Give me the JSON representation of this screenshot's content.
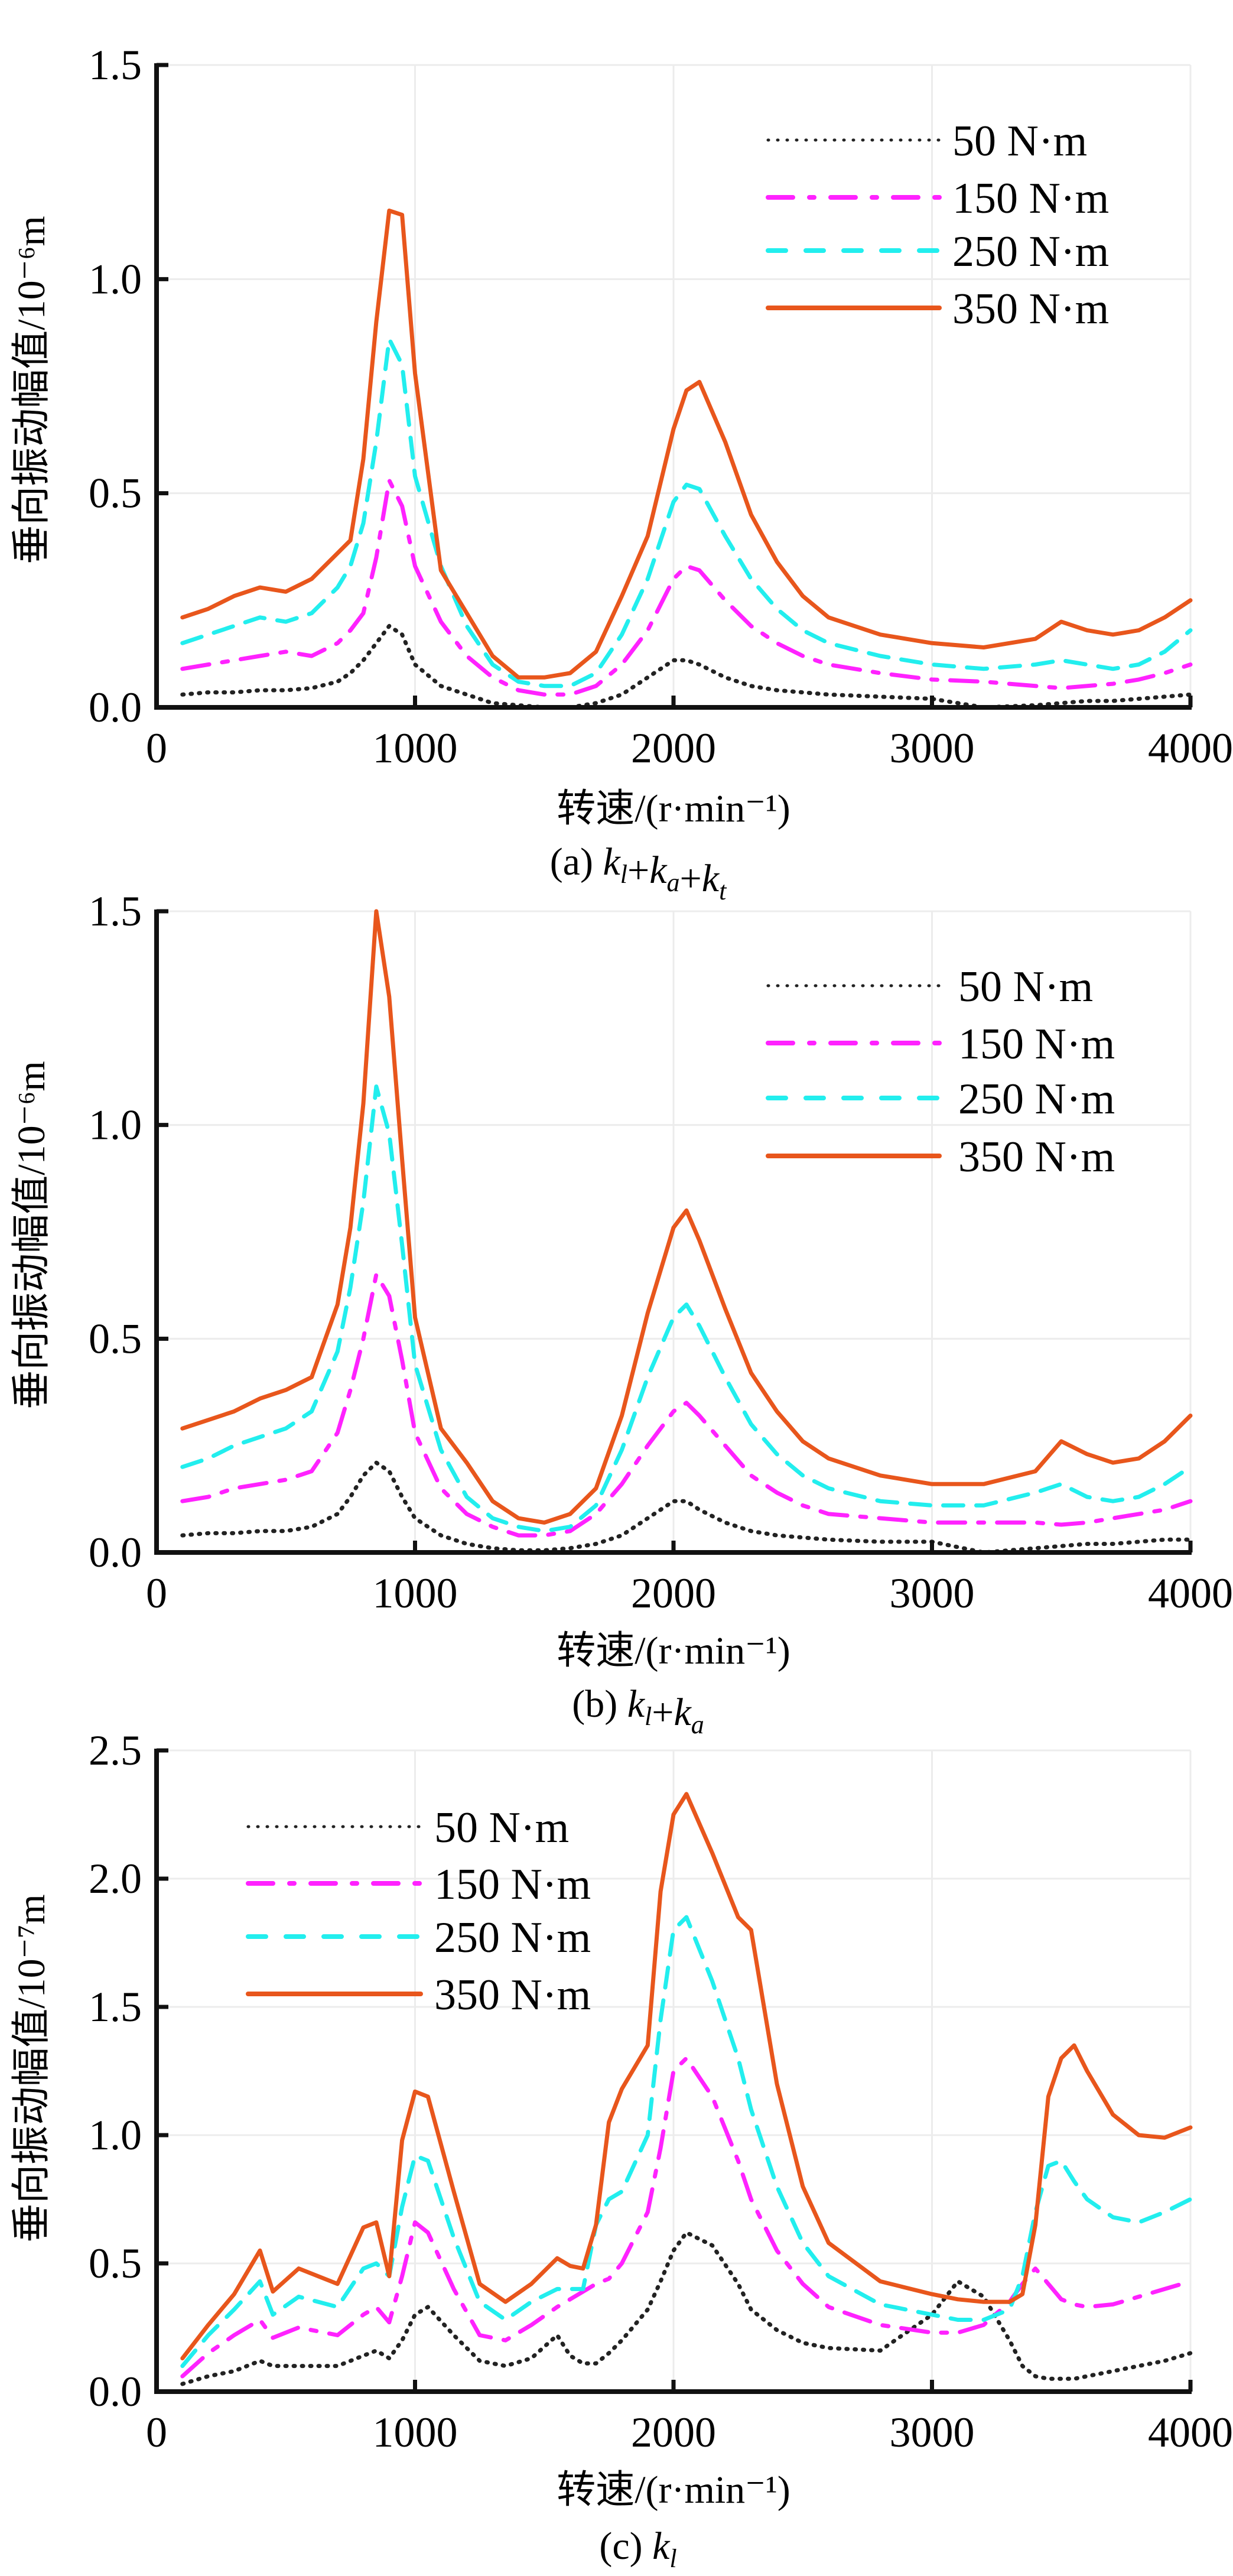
{
  "figure": {
    "legend_labels": [
      "50 N·m",
      "150 N·m",
      "250 N·m",
      "350 N·m"
    ],
    "series_colors": {
      "50 N·m": "#222222",
      "150 N·m": "#ff22ff",
      "250 N·m": "#22eeee",
      "350 N·m": "#e8561c"
    }
  },
  "chart_data": [
    {
      "type": "line",
      "panel": "a",
      "caption": "(a) k_l+k_a+k_t",
      "caption_parts": {
        "prefix": "(a) ",
        "terms": [
          {
            "base": "k",
            "sub": "l"
          },
          {
            "base": "k",
            "sub": "a"
          },
          {
            "base": "k",
            "sub": "t"
          }
        ],
        "sep": "+"
      },
      "xlabel": "转速/(r·min⁻¹)",
      "ylabel": "垂向振动幅值/10⁻⁶m",
      "xlim": [
        0,
        4000
      ],
      "ylim": [
        0,
        1.5
      ],
      "xticks": [
        "0",
        "1000",
        "2000",
        "3000",
        "4000"
      ],
      "yticks": [
        "0.0",
        "0.5",
        "1.0",
        "1.5"
      ],
      "legend_position": "top-right",
      "x": [
        100,
        200,
        300,
        400,
        500,
        600,
        700,
        750,
        800,
        850,
        900,
        950,
        1000,
        1100,
        1200,
        1300,
        1400,
        1500,
        1600,
        1700,
        1800,
        1900,
        2000,
        2050,
        2100,
        2200,
        2300,
        2400,
        2500,
        2600,
        2800,
        3000,
        3200,
        3400,
        3500,
        3600,
        3700,
        3800,
        3900,
        4000
      ],
      "series": [
        {
          "name": "50 N·m",
          "values": [
            0.03,
            0.035,
            0.035,
            0.04,
            0.04,
            0.045,
            0.06,
            0.08,
            0.11,
            0.15,
            0.19,
            0.17,
            0.1,
            0.05,
            0.03,
            0.01,
            0.005,
            0.0,
            0.0,
            0.01,
            0.03,
            0.07,
            0.11,
            0.11,
            0.1,
            0.07,
            0.05,
            0.04,
            0.035,
            0.03,
            0.025,
            0.02,
            0.0,
            0.005,
            0.01,
            0.015,
            0.015,
            0.02,
            0.025,
            0.03
          ]
        },
        {
          "name": "150 N·m",
          "values": [
            0.09,
            0.1,
            0.11,
            0.12,
            0.13,
            0.12,
            0.15,
            0.18,
            0.22,
            0.35,
            0.53,
            0.47,
            0.33,
            0.2,
            0.12,
            0.07,
            0.04,
            0.03,
            0.03,
            0.05,
            0.1,
            0.18,
            0.3,
            0.33,
            0.32,
            0.25,
            0.19,
            0.15,
            0.12,
            0.1,
            0.08,
            0.065,
            0.06,
            0.05,
            0.045,
            0.05,
            0.055,
            0.065,
            0.08,
            0.1
          ]
        },
        {
          "name": "250 N·m",
          "values": [
            0.15,
            0.17,
            0.19,
            0.21,
            0.2,
            0.22,
            0.28,
            0.33,
            0.43,
            0.62,
            0.86,
            0.8,
            0.54,
            0.33,
            0.19,
            0.1,
            0.06,
            0.05,
            0.05,
            0.08,
            0.17,
            0.3,
            0.48,
            0.52,
            0.51,
            0.4,
            0.3,
            0.23,
            0.18,
            0.15,
            0.12,
            0.1,
            0.09,
            0.1,
            0.11,
            0.1,
            0.09,
            0.1,
            0.13,
            0.18
          ]
        },
        {
          "name": "350 N·m",
          "values": [
            0.21,
            0.23,
            0.26,
            0.28,
            0.27,
            0.3,
            0.36,
            0.39,
            0.58,
            0.9,
            1.16,
            1.15,
            0.78,
            0.32,
            0.22,
            0.12,
            0.07,
            0.07,
            0.08,
            0.13,
            0.26,
            0.4,
            0.65,
            0.74,
            0.76,
            0.62,
            0.45,
            0.34,
            0.26,
            0.21,
            0.17,
            0.15,
            0.14,
            0.16,
            0.2,
            0.18,
            0.17,
            0.18,
            0.21,
            0.25
          ]
        }
      ]
    },
    {
      "type": "line",
      "panel": "b",
      "caption": "(b) k_l+k_a",
      "caption_parts": {
        "prefix": "(b) ",
        "terms": [
          {
            "base": "k",
            "sub": "l"
          },
          {
            "base": "k",
            "sub": "a"
          }
        ],
        "sep": "+"
      },
      "xlabel": "转速/(r·min⁻¹)",
      "ylabel": "垂向振动幅值/10⁻⁶m",
      "xlim": [
        0,
        4000
      ],
      "ylim": [
        0,
        1.5
      ],
      "xticks": [
        "0",
        "1000",
        "2000",
        "3000",
        "4000"
      ],
      "yticks": [
        "0.0",
        "0.5",
        "1.0",
        "1.5"
      ],
      "legend_position": "top-right",
      "x": [
        100,
        200,
        300,
        400,
        500,
        600,
        700,
        750,
        800,
        850,
        900,
        950,
        1000,
        1100,
        1200,
        1300,
        1400,
        1500,
        1600,
        1700,
        1800,
        1900,
        2000,
        2050,
        2100,
        2200,
        2300,
        2400,
        2500,
        2600,
        2800,
        3000,
        3200,
        3400,
        3500,
        3600,
        3700,
        3800,
        3900,
        4000
      ],
      "series": [
        {
          "name": "50 N·m",
          "values": [
            0.04,
            0.045,
            0.045,
            0.05,
            0.05,
            0.06,
            0.09,
            0.13,
            0.18,
            0.21,
            0.19,
            0.13,
            0.08,
            0.04,
            0.02,
            0.01,
            0.005,
            0.005,
            0.01,
            0.02,
            0.04,
            0.08,
            0.12,
            0.12,
            0.1,
            0.07,
            0.05,
            0.04,
            0.035,
            0.03,
            0.025,
            0.025,
            0.0,
            0.01,
            0.015,
            0.02,
            0.02,
            0.025,
            0.03,
            0.03
          ]
        },
        {
          "name": "150 N·m",
          "values": [
            0.12,
            0.13,
            0.15,
            0.16,
            0.17,
            0.19,
            0.28,
            0.38,
            0.5,
            0.65,
            0.6,
            0.45,
            0.28,
            0.15,
            0.09,
            0.06,
            0.04,
            0.04,
            0.05,
            0.09,
            0.16,
            0.25,
            0.33,
            0.35,
            0.32,
            0.25,
            0.18,
            0.14,
            0.11,
            0.09,
            0.08,
            0.07,
            0.07,
            0.07,
            0.065,
            0.07,
            0.08,
            0.09,
            0.1,
            0.12
          ]
        },
        {
          "name": "250 N·m",
          "values": [
            0.2,
            0.22,
            0.25,
            0.27,
            0.29,
            0.33,
            0.47,
            0.62,
            0.82,
            1.09,
            0.98,
            0.72,
            0.44,
            0.24,
            0.13,
            0.08,
            0.06,
            0.05,
            0.06,
            0.11,
            0.24,
            0.41,
            0.55,
            0.58,
            0.53,
            0.41,
            0.3,
            0.23,
            0.18,
            0.15,
            0.12,
            0.11,
            0.11,
            0.14,
            0.16,
            0.13,
            0.12,
            0.13,
            0.16,
            0.2
          ]
        },
        {
          "name": "350 N·m",
          "values": [
            0.29,
            0.31,
            0.33,
            0.36,
            0.38,
            0.41,
            0.58,
            0.76,
            1.05,
            1.5,
            1.3,
            0.92,
            0.55,
            0.29,
            0.21,
            0.12,
            0.08,
            0.07,
            0.09,
            0.15,
            0.32,
            0.56,
            0.76,
            0.8,
            0.73,
            0.57,
            0.42,
            0.33,
            0.26,
            0.22,
            0.18,
            0.16,
            0.16,
            0.19,
            0.26,
            0.23,
            0.21,
            0.22,
            0.26,
            0.32
          ]
        }
      ]
    },
    {
      "type": "line",
      "panel": "c",
      "caption": "(c) k_l",
      "caption_parts": {
        "prefix": "(c) ",
        "terms": [
          {
            "base": "k",
            "sub": "l"
          }
        ],
        "sep": "+"
      },
      "xlabel": "转速/(r·min⁻¹)",
      "ylabel": "垂向振动幅值/10⁻⁷m",
      "xlim": [
        0,
        4000
      ],
      "ylim": [
        0,
        2.5
      ],
      "xticks": [
        "0",
        "1000",
        "2000",
        "3000",
        "4000"
      ],
      "yticks": [
        "0.0",
        "0.5",
        "1.0",
        "1.5",
        "2.0",
        "2.5"
      ],
      "legend_position": "top-left",
      "x": [
        100,
        200,
        300,
        400,
        450,
        550,
        700,
        800,
        850,
        900,
        950,
        1000,
        1050,
        1150,
        1250,
        1350,
        1450,
        1550,
        1600,
        1650,
        1700,
        1750,
        1800,
        1900,
        1950,
        2000,
        2050,
        2150,
        2250,
        2300,
        2400,
        2500,
        2600,
        2800,
        3000,
        3100,
        3200,
        3300,
        3350,
        3400,
        3450,
        3500,
        3550,
        3600,
        3700,
        3800,
        3900,
        4000
      ],
      "series": [
        {
          "name": "50 N·m",
          "values": [
            0.03,
            0.06,
            0.08,
            0.12,
            0.1,
            0.1,
            0.1,
            0.14,
            0.16,
            0.13,
            0.2,
            0.3,
            0.33,
            0.22,
            0.12,
            0.1,
            0.13,
            0.22,
            0.14,
            0.11,
            0.11,
            0.15,
            0.2,
            0.32,
            0.43,
            0.55,
            0.62,
            0.57,
            0.42,
            0.32,
            0.24,
            0.19,
            0.17,
            0.16,
            0.3,
            0.43,
            0.37,
            0.2,
            0.1,
            0.06,
            0.05,
            0.05,
            0.05,
            0.06,
            0.08,
            0.1,
            0.12,
            0.15
          ]
        },
        {
          "name": "150 N·m",
          "values": [
            0.06,
            0.15,
            0.22,
            0.28,
            0.21,
            0.25,
            0.22,
            0.3,
            0.33,
            0.27,
            0.45,
            0.66,
            0.62,
            0.4,
            0.22,
            0.2,
            0.26,
            0.33,
            0.36,
            0.39,
            0.42,
            0.44,
            0.5,
            0.7,
            0.95,
            1.25,
            1.3,
            1.15,
            0.9,
            0.75,
            0.55,
            0.42,
            0.33,
            0.26,
            0.23,
            0.23,
            0.26,
            0.35,
            0.42,
            0.48,
            0.42,
            0.36,
            0.34,
            0.33,
            0.34,
            0.37,
            0.4,
            0.43
          ]
        },
        {
          "name": "250 N·m",
          "values": [
            0.1,
            0.22,
            0.32,
            0.43,
            0.3,
            0.37,
            0.33,
            0.48,
            0.5,
            0.45,
            0.72,
            0.92,
            0.9,
            0.6,
            0.35,
            0.28,
            0.35,
            0.4,
            0.4,
            0.4,
            0.65,
            0.75,
            0.78,
            1.0,
            1.45,
            1.8,
            1.85,
            1.6,
            1.3,
            1.1,
            0.8,
            0.58,
            0.45,
            0.34,
            0.3,
            0.28,
            0.28,
            0.32,
            0.45,
            0.7,
            0.88,
            0.9,
            0.82,
            0.75,
            0.68,
            0.66,
            0.7,
            0.75
          ]
        },
        {
          "name": "350 N·m",
          "values": [
            0.13,
            0.26,
            0.38,
            0.55,
            0.39,
            0.48,
            0.42,
            0.64,
            0.66,
            0.45,
            0.98,
            1.17,
            1.15,
            0.78,
            0.42,
            0.35,
            0.42,
            0.52,
            0.49,
            0.48,
            0.65,
            1.05,
            1.18,
            1.35,
            1.95,
            2.25,
            2.33,
            2.1,
            1.85,
            1.8,
            1.2,
            0.8,
            0.58,
            0.43,
            0.38,
            0.36,
            0.35,
            0.35,
            0.38,
            0.65,
            1.15,
            1.3,
            1.35,
            1.25,
            1.08,
            1.0,
            0.99,
            1.03
          ]
        }
      ]
    }
  ]
}
